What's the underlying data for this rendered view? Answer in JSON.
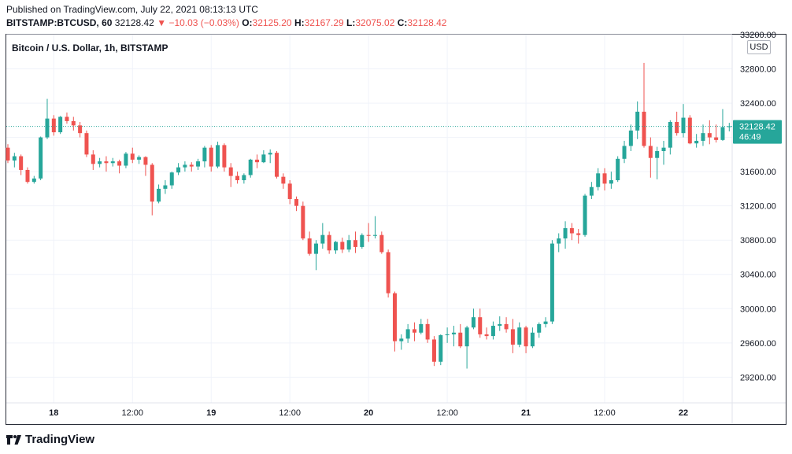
{
  "header": {
    "published": "Published on TradingView.com, July 22, 2021 08:13:13 UTC",
    "symbol": "BITSTAMP:BTCUSD, 60",
    "last": "32128.42",
    "change_arrow": "▼",
    "change": "−10.03 (−0.03%)",
    "open_label": "O:",
    "open": "32125.20",
    "high_label": "H:",
    "high": "32167.29",
    "low_label": "L:",
    "low": "32075.02",
    "close_label": "C:",
    "close": "32128.42"
  },
  "chart_data": {
    "type": "candlestick",
    "title": "Bitcoin / U.S. Dollar, 1h, BITSTAMP",
    "currency": "USD",
    "ylim": [
      28900,
      33200
    ],
    "y_ticks": [
      29200,
      29600,
      30000,
      30400,
      30800,
      31200,
      31600,
      32000,
      32400,
      32800,
      33200
    ],
    "y_tick_labels": [
      "29200.00",
      "29600.00",
      "30000.00",
      "30400.00",
      "30800.00",
      "31200.00",
      "31600.00",
      "32000.00",
      "32400.00",
      "32800.00",
      "33200.00"
    ],
    "x_tick_labels": [
      {
        "label": "18",
        "hour": 7
      },
      {
        "label": "12:00",
        "hour": 19
      },
      {
        "label": "19",
        "hour": 31
      },
      {
        "label": "12:00",
        "hour": 43
      },
      {
        "label": "20",
        "hour": 55
      },
      {
        "label": "12:00",
        "hour": 67
      },
      {
        "label": "21",
        "hour": 79
      },
      {
        "label": "12:00",
        "hour": 91
      },
      {
        "label": "22",
        "hour": 103
      }
    ],
    "last_price_label": "32128.42",
    "countdown": "46:49",
    "last_price": 32128.42,
    "colors": {
      "up": "#26a69a",
      "down": "#ef5350",
      "grid": "#f0f3fa"
    },
    "ohlc": [
      [
        31880,
        31920,
        31700,
        31730
      ],
      [
        31730,
        31820,
        31650,
        31780
      ],
      [
        31780,
        31800,
        31560,
        31620
      ],
      [
        31620,
        31650,
        31460,
        31480
      ],
      [
        31480,
        31550,
        31460,
        31520
      ],
      [
        31520,
        32010,
        31500,
        32000
      ],
      [
        32000,
        32450,
        31980,
        32220
      ],
      [
        32220,
        32260,
        32020,
        32060
      ],
      [
        32060,
        32250,
        32040,
        32240
      ],
      [
        32240,
        32290,
        32160,
        32190
      ],
      [
        32190,
        32240,
        32080,
        32140
      ],
      [
        32140,
        32180,
        32000,
        32050
      ],
      [
        32050,
        32080,
        31770,
        31800
      ],
      [
        31800,
        31850,
        31620,
        31690
      ],
      [
        31690,
        31760,
        31650,
        31720
      ],
      [
        31720,
        31780,
        31600,
        31700
      ],
      [
        31700,
        31760,
        31660,
        31720
      ],
      [
        31720,
        31740,
        31580,
        31670
      ],
      [
        31670,
        31830,
        31640,
        31810
      ],
      [
        31810,
        31880,
        31700,
        31740
      ],
      [
        31740,
        31790,
        31690,
        31770
      ],
      [
        31770,
        31780,
        31550,
        31680
      ],
      [
        31680,
        31700,
        31090,
        31250
      ],
      [
        31250,
        31450,
        31230,
        31400
      ],
      [
        31400,
        31500,
        31340,
        31440
      ],
      [
        31440,
        31600,
        31400,
        31590
      ],
      [
        31590,
        31700,
        31560,
        31650
      ],
      [
        31650,
        31720,
        31600,
        31680
      ],
      [
        31680,
        31710,
        31600,
        31660
      ],
      [
        31660,
        31750,
        31620,
        31720
      ],
      [
        31720,
        31900,
        31650,
        31880
      ],
      [
        31880,
        31910,
        31600,
        31660
      ],
      [
        31660,
        31950,
        31640,
        31910
      ],
      [
        31910,
        31930,
        31600,
        31650
      ],
      [
        31650,
        31700,
        31420,
        31550
      ],
      [
        31550,
        31600,
        31460,
        31500
      ],
      [
        31500,
        31580,
        31460,
        31560
      ],
      [
        31560,
        31750,
        31530,
        31740
      ],
      [
        31740,
        31800,
        31640,
        31710
      ],
      [
        31710,
        31850,
        31700,
        31800
      ],
      [
        31800,
        31860,
        31700,
        31820
      ],
      [
        31820,
        31840,
        31520,
        31540
      ],
      [
        31540,
        31580,
        31400,
        31460
      ],
      [
        31460,
        31500,
        31220,
        31280
      ],
      [
        31280,
        31310,
        31140,
        31200
      ],
      [
        31200,
        31250,
        30800,
        30820
      ],
      [
        30820,
        30900,
        30620,
        30640
      ],
      [
        30640,
        30800,
        30450,
        30760
      ],
      [
        30760,
        31000,
        30700,
        30860
      ],
      [
        30860,
        30900,
        30640,
        30680
      ],
      [
        30680,
        30790,
        30640,
        30780
      ],
      [
        30780,
        30830,
        30650,
        30690
      ],
      [
        30690,
        30860,
        30660,
        30800
      ],
      [
        30800,
        30900,
        30650,
        30720
      ],
      [
        30720,
        30880,
        30700,
        30860
      ],
      [
        30860,
        31000,
        30780,
        30850
      ],
      [
        30850,
        31080,
        30820,
        30860
      ],
      [
        30860,
        30900,
        30640,
        30660
      ],
      [
        30660,
        30690,
        30130,
        30180
      ],
      [
        30180,
        30200,
        29500,
        29620
      ],
      [
        29620,
        29700,
        29520,
        29650
      ],
      [
        29650,
        29820,
        29600,
        29760
      ],
      [
        29760,
        29840,
        29620,
        29720
      ],
      [
        29720,
        29880,
        29700,
        29820
      ],
      [
        29820,
        29880,
        29600,
        29640
      ],
      [
        29640,
        29680,
        29330,
        29380
      ],
      [
        29380,
        29700,
        29340,
        29690
      ],
      [
        29690,
        29780,
        29600,
        29700
      ],
      [
        29700,
        29800,
        29560,
        29720
      ],
      [
        29720,
        29820,
        29540,
        29560
      ],
      [
        29560,
        29800,
        29300,
        29780
      ],
      [
        29780,
        30000,
        29760,
        29900
      ],
      [
        29900,
        30000,
        29660,
        29700
      ],
      [
        29700,
        29780,
        29640,
        29680
      ],
      [
        29680,
        29850,
        29640,
        29800
      ],
      [
        29800,
        29910,
        29740,
        29820
      ],
      [
        29820,
        29900,
        29720,
        29760
      ],
      [
        29760,
        29880,
        29480,
        29580
      ],
      [
        29580,
        29840,
        29550,
        29780
      ],
      [
        29780,
        29800,
        29480,
        29560
      ],
      [
        29560,
        29780,
        29540,
        29720
      ],
      [
        29720,
        29840,
        29660,
        29820
      ],
      [
        29820,
        29900,
        29780,
        29850
      ],
      [
        29850,
        30800,
        29820,
        30760
      ],
      [
        30760,
        30880,
        30660,
        30820
      ],
      [
        30820,
        31020,
        30700,
        30940
      ],
      [
        30940,
        31000,
        30800,
        30880
      ],
      [
        30880,
        30930,
        30760,
        30860
      ],
      [
        30860,
        31340,
        30840,
        31320
      ],
      [
        31320,
        31480,
        31280,
        31420
      ],
      [
        31420,
        31640,
        31380,
        31580
      ],
      [
        31580,
        31640,
        31380,
        31460
      ],
      [
        31460,
        31600,
        31400,
        31500
      ],
      [
        31500,
        31780,
        31480,
        31750
      ],
      [
        31750,
        31960,
        31700,
        31900
      ],
      [
        31900,
        32150,
        31840,
        32080
      ],
      [
        32080,
        32420,
        31980,
        32300
      ],
      [
        32300,
        32870,
        31880,
        31900
      ],
      [
        31900,
        32000,
        31530,
        31760
      ],
      [
        31760,
        31890,
        31510,
        31840
      ],
      [
        31840,
        31960,
        31680,
        31880
      ],
      [
        31880,
        32200,
        31800,
        32180
      ],
      [
        32180,
        32300,
        32020,
        32050
      ],
      [
        32050,
        32390,
        32000,
        32230
      ],
      [
        32230,
        32260,
        31920,
        31930
      ],
      [
        31930,
        32040,
        31880,
        31960
      ],
      [
        31960,
        32150,
        31900,
        32050
      ],
      [
        32050,
        32200,
        31920,
        32000
      ],
      [
        32000,
        32150,
        31940,
        31970
      ],
      [
        31970,
        32330,
        31960,
        32120
      ],
      [
        32120,
        32170,
        32070,
        32130
      ]
    ]
  }
}
